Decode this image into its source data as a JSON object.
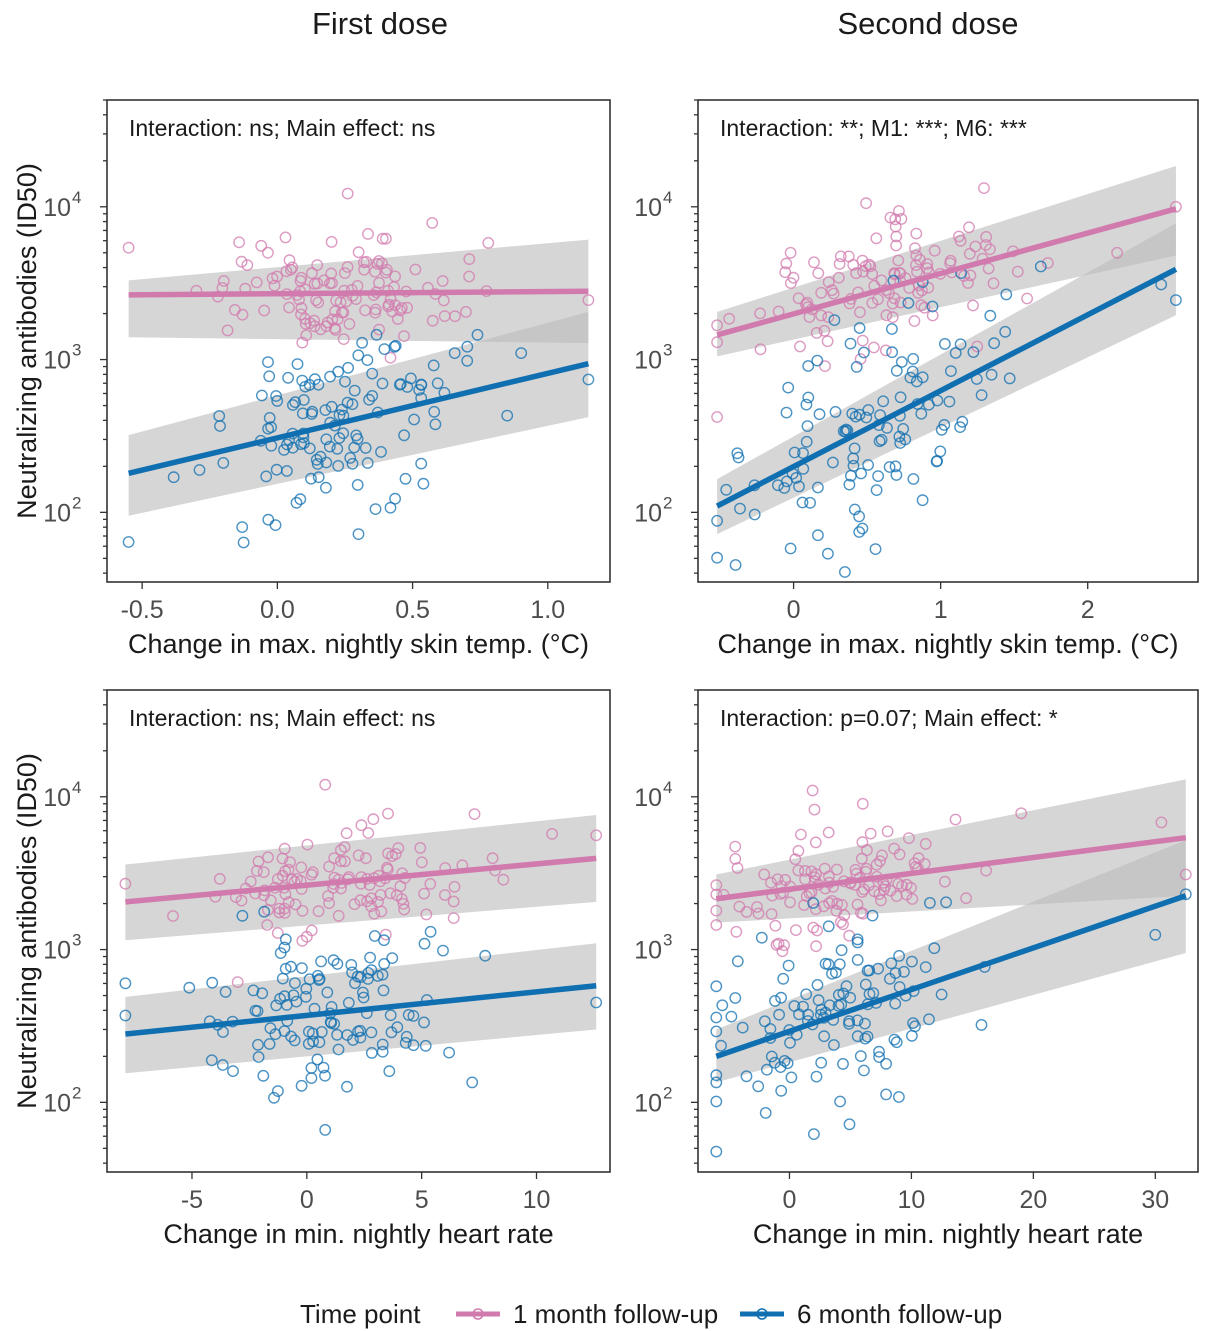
{
  "column_titles": [
    "First dose",
    "Second dose"
  ],
  "legend": {
    "title": "Time point",
    "items": [
      {
        "label": "1 month follow-up",
        "color": "#d17aad"
      },
      {
        "label": "6 month follow-up",
        "color": "#0f6fb0"
      }
    ]
  },
  "colors": {
    "month1": "#d17aad",
    "month6": "#0f6fb0",
    "ribbon": "#bdbdbd"
  },
  "chart_data": [
    {
      "type": "scatter",
      "panel": "top-left",
      "annotation": "Interaction: ns; Main effect: ns",
      "xlabel": "Change in max. nightly skin temp. (°C)",
      "ylabel": "Neutralizing antibodies (ID50)",
      "y_scale": "log10",
      "xlim": [
        -0.63,
        1.23
      ],
      "ylim": [
        35,
        50000
      ],
      "x_ticks": [
        -0.5,
        0,
        0.5,
        1
      ],
      "x_tick_labels": [
        "-0.5",
        "0.0",
        "0.5",
        "1.0"
      ],
      "y_ticks": [
        100,
        1000,
        10000
      ],
      "y_tick_labels": [
        "10",
        "10",
        "10"
      ],
      "y_tick_exponents": [
        "2",
        "3",
        "4"
      ],
      "series": [
        {
          "name": "1 month follow-up",
          "key": "month1",
          "fit": {
            "x": [
              -0.55,
              1.15
            ],
            "y": [
              2650,
              2800
            ]
          },
          "ci": {
            "upper": [
              3300,
              6100
            ],
            "lower": [
              1400,
              1280
            ]
          },
          "points": {
            "n": 120,
            "x_center": 0.2,
            "x_sd": 0.22,
            "y_center_log": 3.42,
            "y_sd_log": 0.17,
            "extras": [
              [
                -0.55,
                5400
              ],
              [
                0.26,
                12200
              ],
              [
                1.15,
                2450
              ],
              [
                0.03,
                6300
              ],
              [
                0.78,
                5800
              ]
            ]
          }
        },
        {
          "name": "6 month follow-up",
          "key": "month6",
          "fit": {
            "x": [
              -0.55,
              1.15
            ],
            "y": [
              180,
              940
            ]
          },
          "ci": {
            "upper": [
              320,
              2050
            ],
            "lower": [
              95,
              420
            ]
          },
          "points": {
            "n": 120,
            "x_center": 0.22,
            "x_sd": 0.22,
            "y_center_log": 2.55,
            "y_sd_log": 0.28,
            "extras": [
              [
                -0.55,
                64
              ],
              [
                1.15,
                740
              ],
              [
                0.85,
                430
              ],
              [
                0.3,
                72
              ],
              [
                -0.13,
                80
              ]
            ]
          }
        }
      ]
    },
    {
      "type": "scatter",
      "panel": "top-right",
      "annotation": "Interaction: **; M1: ***; M6: ***",
      "xlabel": "Change in max. nightly skin temp. (°C)",
      "ylabel": "",
      "y_scale": "log10",
      "xlim": [
        -0.65,
        2.75
      ],
      "ylim": [
        35,
        50000
      ],
      "x_ticks": [
        0,
        1,
        2
      ],
      "x_tick_labels": [
        "0",
        "1",
        "2"
      ],
      "y_ticks": [
        100,
        1000,
        10000
      ],
      "y_tick_labels": [
        "10",
        "10",
        "10"
      ],
      "y_tick_exponents": [
        "2",
        "3",
        "4"
      ],
      "series": [
        {
          "name": "1 month follow-up",
          "key": "month1",
          "fit": {
            "x": [
              -0.52,
              2.6
            ],
            "y": [
              1450,
              9700
            ]
          },
          "ci": {
            "upper": [
              2050,
              18500
            ],
            "lower": [
              1050,
              4800
            ]
          },
          "points": {
            "n": 120,
            "x_center": 0.55,
            "x_sd": 0.45,
            "y_center_log": 3.42,
            "y_sd_log": 0.2,
            "extras": [
              [
                -0.52,
                1300
              ],
              [
                2.6,
                10000
              ],
              [
                2.2,
                5000
              ],
              [
                -0.02,
                5000
              ]
            ]
          }
        },
        {
          "name": "6 month follow-up",
          "key": "month6",
          "fit": {
            "x": [
              -0.52,
              2.6
            ],
            "y": [
              110,
              3900
            ]
          },
          "ci": {
            "upper": [
              165,
              7800
            ],
            "lower": [
              72,
              1950
            ]
          },
          "points": {
            "n": 120,
            "x_center": 0.5,
            "x_sd": 0.45,
            "y_center_log": 2.5,
            "y_sd_log": 0.32,
            "extras": [
              [
                -0.52,
                88
              ],
              [
                2.6,
                2450
              ],
              [
                -0.02,
                58
              ],
              [
                2.5,
                3100
              ]
            ]
          }
        }
      ]
    },
    {
      "type": "scatter",
      "panel": "bottom-left",
      "annotation": "Interaction: ns; Main effect: ns",
      "xlabel": "Change in min. nightly heart rate",
      "ylabel": "Neutralizing antibodies (ID50)",
      "y_scale": "log10",
      "xlim": [
        -8.7,
        13.2
      ],
      "ylim": [
        35,
        50000
      ],
      "x_ticks": [
        -5,
        0,
        5,
        10
      ],
      "x_tick_labels": [
        "-5",
        "0",
        "5",
        "10"
      ],
      "y_ticks": [
        100,
        1000,
        10000
      ],
      "y_tick_labels": [
        "10",
        "10",
        "10"
      ],
      "y_tick_exponents": [
        "2",
        "3",
        "4"
      ],
      "series": [
        {
          "name": "1 month follow-up",
          "key": "month1",
          "fit": {
            "x": [
              -7.9,
              12.6
            ],
            "y": [
              2050,
              3950
            ]
          },
          "ci": {
            "upper": [
              3600,
              7600
            ],
            "lower": [
              1150,
              2050
            ]
          },
          "points": {
            "n": 120,
            "x_center": 1.5,
            "x_sd": 3.0,
            "y_center_log": 3.45,
            "y_sd_log": 0.17,
            "extras": [
              [
                -7.9,
                2700
              ],
              [
                12.6,
                5600
              ],
              [
                0.8,
                12000
              ],
              [
                7.3,
                7700
              ]
            ]
          }
        },
        {
          "name": "6 month follow-up",
          "key": "month6",
          "fit": {
            "x": [
              -7.9,
              12.6
            ],
            "y": [
              280,
              580
            ]
          },
          "ci": {
            "upper": [
              490,
              1100
            ],
            "lower": [
              155,
              300
            ]
          },
          "points": {
            "n": 120,
            "x_center": 1.0,
            "x_sd": 3.2,
            "y_center_log": 2.58,
            "y_sd_log": 0.25,
            "extras": [
              [
                -7.9,
                370
              ],
              [
                12.6,
                450
              ],
              [
                0.8,
                66
              ],
              [
                7.2,
                135
              ]
            ]
          }
        }
      ]
    },
    {
      "type": "scatter",
      "panel": "bottom-right",
      "annotation": "Interaction: p=0.07; Main effect: *",
      "xlabel": "Change in min. nightly heart rate",
      "ylabel": "",
      "y_scale": "log10",
      "xlim": [
        -7.5,
        33.5
      ],
      "ylim": [
        35,
        50000
      ],
      "x_ticks": [
        0,
        10,
        20,
        30
      ],
      "x_tick_labels": [
        "0",
        "10",
        "20",
        "30"
      ],
      "y_ticks": [
        100,
        1000,
        10000
      ],
      "y_tick_labels": [
        "10",
        "10",
        "10"
      ],
      "y_tick_exponents": [
        "2",
        "3",
        "4"
      ],
      "series": [
        {
          "name": "1 month follow-up",
          "key": "month1",
          "fit": {
            "x": [
              -6,
              32.5
            ],
            "y": [
              2150,
              5400
            ]
          },
          "ci": {
            "upper": [
              3100,
              13000
            ],
            "lower": [
              1500,
              2250
            ]
          },
          "points": {
            "n": 120,
            "x_center": 4,
            "x_sd": 5,
            "y_center_log": 3.42,
            "y_sd_log": 0.17,
            "extras": [
              [
                -6,
                1800
              ],
              [
                30.5,
                6800
              ],
              [
                1.9,
                11000
              ],
              [
                19,
                7800
              ],
              [
                32.5,
                3100
              ]
            ]
          }
        },
        {
          "name": "6 month follow-up",
          "key": "month6",
          "fit": {
            "x": [
              -6,
              32.5
            ],
            "y": [
              200,
              2250
            ]
          },
          "ci": {
            "upper": [
              300,
              5200
            ],
            "lower": [
              135,
              950
            ]
          },
          "points": {
            "n": 120,
            "x_center": 3.5,
            "x_sd": 5,
            "y_center_log": 2.55,
            "y_sd_log": 0.28,
            "extras": [
              [
                -6,
                135
              ],
              [
                32.5,
                2300
              ],
              [
                2,
                62
              ],
              [
                30,
                1250
              ]
            ]
          }
        }
      ]
    }
  ]
}
